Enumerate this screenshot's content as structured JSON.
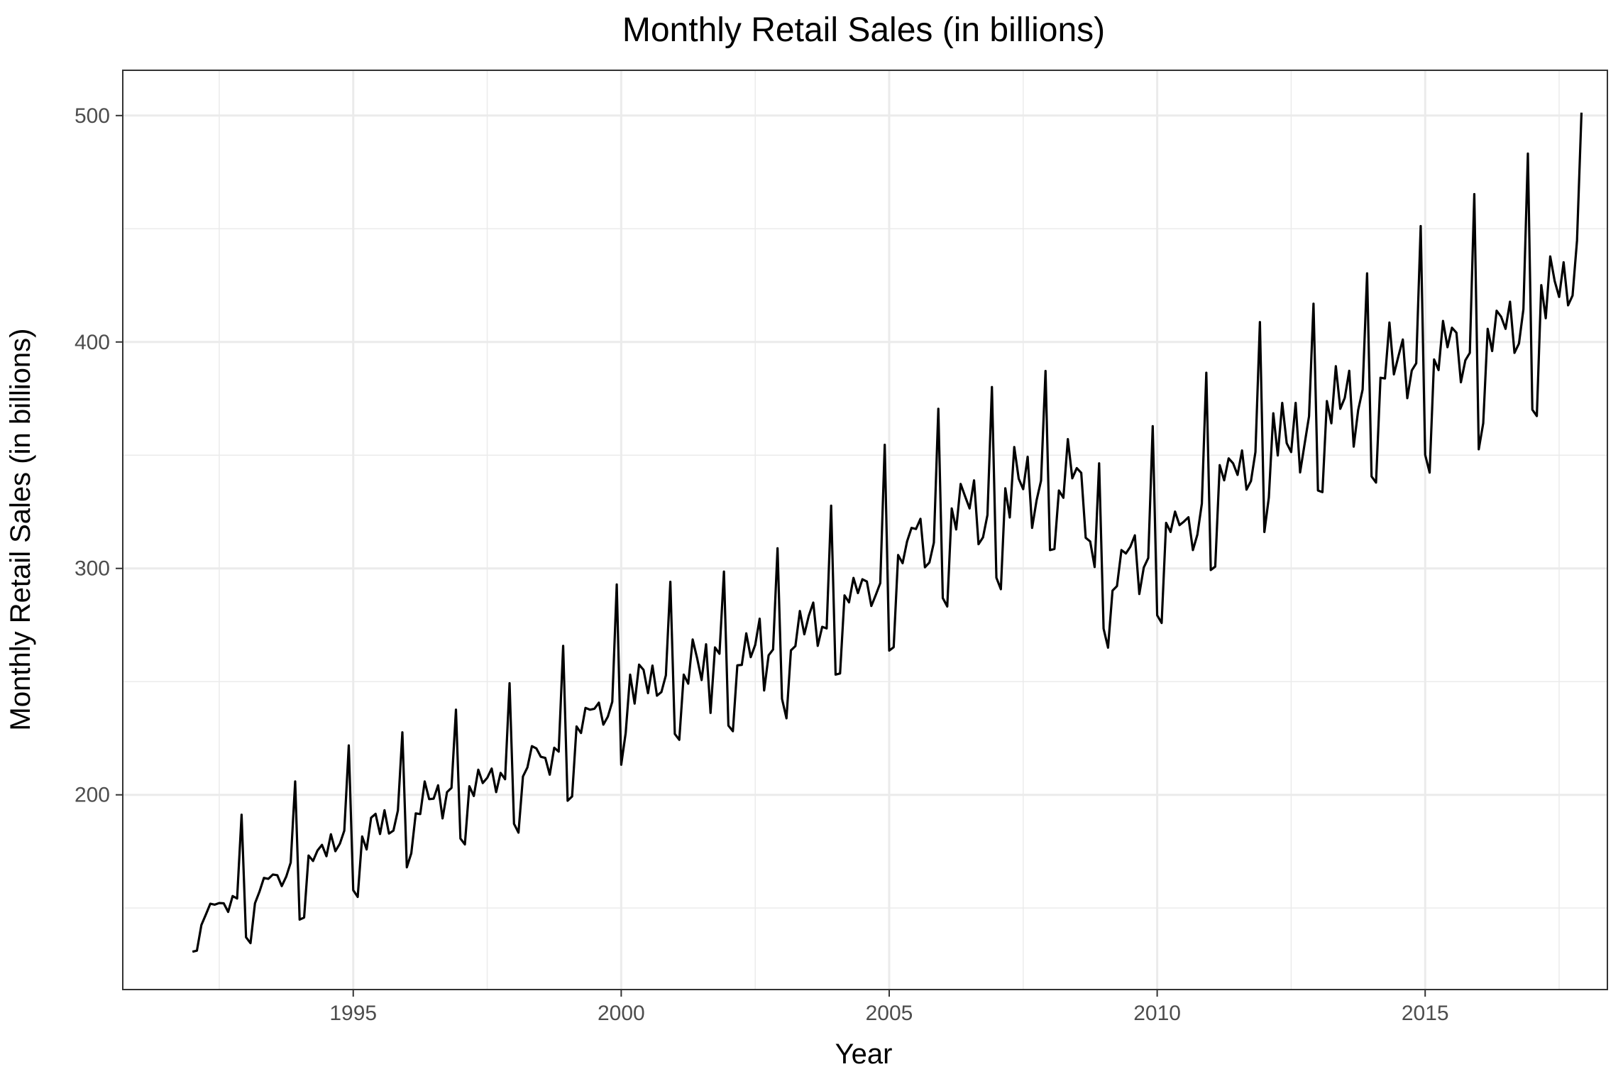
{
  "chart_data": {
    "type": "line",
    "title": "Monthly Retail Sales (in billions)",
    "xlabel": "Year",
    "ylabel": "Monthly Retail Sales (in billions)",
    "x_ticks": [
      1995,
      2000,
      2005,
      2010,
      2015
    ],
    "y_ticks": [
      200,
      300,
      400,
      500
    ],
    "xlim": [
      1990.7,
      2018.4
    ],
    "ylim": [
      114,
      520
    ],
    "grid": true,
    "start": "1992-01",
    "frequency": "monthly",
    "series": [
      {
        "values": [
          130.7,
          131.2,
          142.5,
          147.1,
          151.9,
          151.5,
          152.2,
          152.1,
          148.3,
          155.3,
          154.2,
          191.2,
          137.1,
          134.5,
          152.1,
          157.2,
          163.3,
          162.9,
          164.8,
          164.5,
          159.7,
          163.9,
          170.1,
          205.9,
          144.9,
          145.8,
          173.2,
          170.8,
          175.4,
          177.9,
          172.9,
          182.6,
          175.1,
          178.4,
          184.2,
          221.8,
          157.9,
          154.9,
          181.6,
          175.9,
          189.9,
          191.6,
          182.7,
          193.2,
          182.9,
          184.2,
          193.1,
          227.6,
          168.0,
          174.2,
          191.8,
          191.5,
          205.9,
          198.1,
          198.3,
          204.2,
          189.6,
          201.2,
          203.1,
          237.6,
          180.7,
          178.1,
          203.8,
          199.5,
          211.1,
          205.2,
          207.5,
          211.6,
          201.2,
          209.7,
          206.9,
          249.3,
          187.2,
          183.3,
          208.1,
          212.1,
          221.5,
          220.5,
          216.8,
          216.3,
          208.9,
          220.8,
          219.1,
          265.8,
          197.4,
          199.3,
          230.2,
          227.3,
          238.4,
          237.6,
          238.0,
          240.7,
          231.0,
          234.5,
          241.1,
          292.9,
          213.3,
          227.3,
          253.1,
          240.3,
          257.5,
          255.2,
          244.9,
          257.1,
          243.8,
          245.4,
          252.8,
          294.1,
          226.9,
          224.3,
          253.1,
          249.1,
          268.6,
          260.3,
          250.7,
          266.5,
          236.2,
          265.1,
          262.3,
          298.6,
          230.6,
          228.1,
          257.2,
          257.4,
          271.3,
          260.8,
          266.2,
          277.8,
          246.1,
          261.6,
          264.2,
          308.9,
          242.4,
          233.8,
          263.8,
          265.7,
          281.2,
          270.9,
          279.1,
          284.9,
          265.8,
          274.2,
          273.5,
          327.7,
          253.1,
          253.6,
          288.1,
          285.0,
          295.8,
          289.1,
          295.2,
          294.2,
          283.4,
          288.3,
          293.5,
          354.6,
          263.7,
          265.2,
          305.9,
          302.3,
          311.9,
          317.9,
          317.4,
          321.9,
          300.5,
          302.6,
          311.4,
          370.5,
          286.9,
          283.2,
          326.5,
          317.2,
          337.3,
          331.8,
          326.5,
          338.9,
          310.7,
          313.7,
          323.6,
          380.1,
          295.9,
          290.8,
          335.4,
          322.5,
          353.6,
          339.6,
          335.0,
          349.3,
          317.9,
          330.1,
          338.8,
          387.2,
          308.1,
          308.6,
          334.4,
          331.2,
          357.1,
          339.8,
          344.3,
          342.2,
          313.5,
          311.9,
          300.6,
          346.4,
          273.4,
          265.0,
          290.2,
          292.2,
          308.1,
          306.6,
          309.6,
          314.6,
          288.7,
          300.4,
          304.6,
          362.8,
          279.3,
          275.9,
          320.1,
          316.1,
          325.1,
          319.1,
          320.7,
          322.6,
          308.1,
          314.9,
          328.6,
          386.4,
          299.3,
          300.8,
          345.6,
          338.9,
          348.6,
          346.4,
          341.3,
          352.1,
          334.8,
          338.6,
          351.4,
          408.8,
          316.1,
          331.3,
          368.5,
          349.9,
          373.1,
          355.3,
          351.4,
          373.1,
          342.4,
          354.8,
          367.2,
          416.9,
          334.4,
          333.7,
          373.9,
          364.1,
          389.3,
          370.5,
          375.3,
          387.3,
          353.8,
          369.9,
          379.0,
          430.3,
          340.6,
          337.9,
          384.2,
          383.9,
          408.6,
          385.7,
          393.6,
          401.1,
          375.2,
          387.4,
          390.6,
          451.2,
          350.2,
          342.3,
          392.3,
          387.6,
          409.3,
          397.7,
          406.3,
          404.1,
          382.2,
          391.9,
          395.2,
          465.3,
          352.6,
          364.1,
          405.8,
          396.0,
          413.8,
          411.2,
          405.8,
          417.8,
          395.2,
          399.3,
          414.5,
          483.2,
          370.1,
          367.3,
          425.1,
          410.5,
          437.8,
          426.9,
          419.9,
          435.2,
          416.2,
          420.5,
          444.8,
          501.3
        ]
      }
    ]
  }
}
